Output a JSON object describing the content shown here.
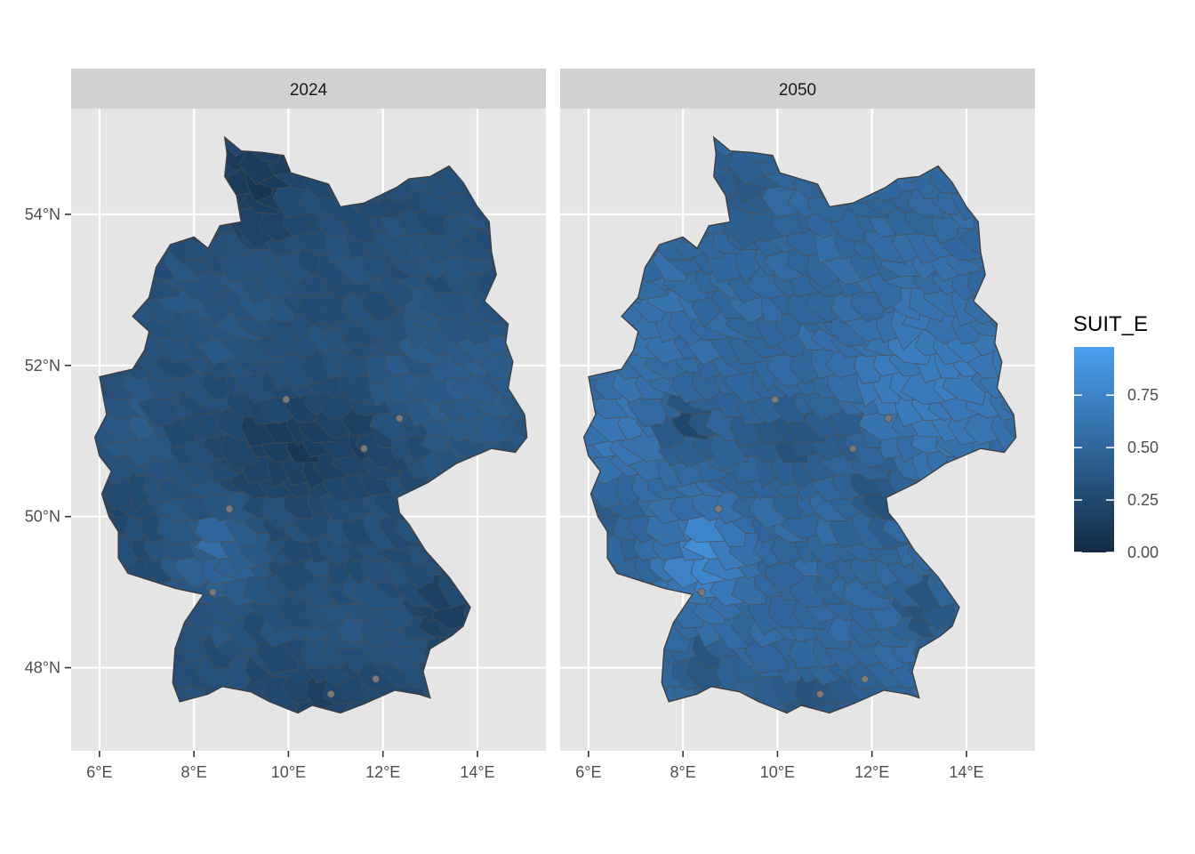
{
  "map": {
    "region": "Germany",
    "projection": "longitude / latitude",
    "background_color": "#e5e5e5",
    "strip_color": "#d1d1d1",
    "grid_color": "#ffffff",
    "border_color": "#4d4d4d",
    "no_data_color": "#7a7a7a",
    "panels": [
      {
        "label": "2024",
        "pattern": "mostly dark (north and center low, south-west band of higher values)"
      },
      {
        "label": "2050",
        "pattern": "overall lighter (east and south-west higher, center and south-east low)"
      }
    ],
    "axes": {
      "x_ticks": [
        "6°E",
        "8°E",
        "10°E",
        "12°E",
        "14°E"
      ],
      "x_tick_values": [
        6,
        8,
        10,
        12,
        14
      ],
      "y_ticks": [
        "48°N",
        "50°N",
        "52°N",
        "54°N"
      ],
      "y_tick_values": [
        48,
        50,
        52,
        54
      ],
      "xlim": [
        5.4,
        15.45
      ],
      "ylim": [
        46.9,
        55.4
      ]
    },
    "legend": {
      "title": "SUIT_E",
      "labels": [
        "0.75",
        "0.50",
        "0.25",
        "0.00"
      ],
      "values": [
        0.75,
        0.5,
        0.25,
        0.0
      ],
      "range": [
        0.0,
        0.98
      ],
      "color_low": "#132b43",
      "color_high": "#4a9ff0"
    }
  }
}
